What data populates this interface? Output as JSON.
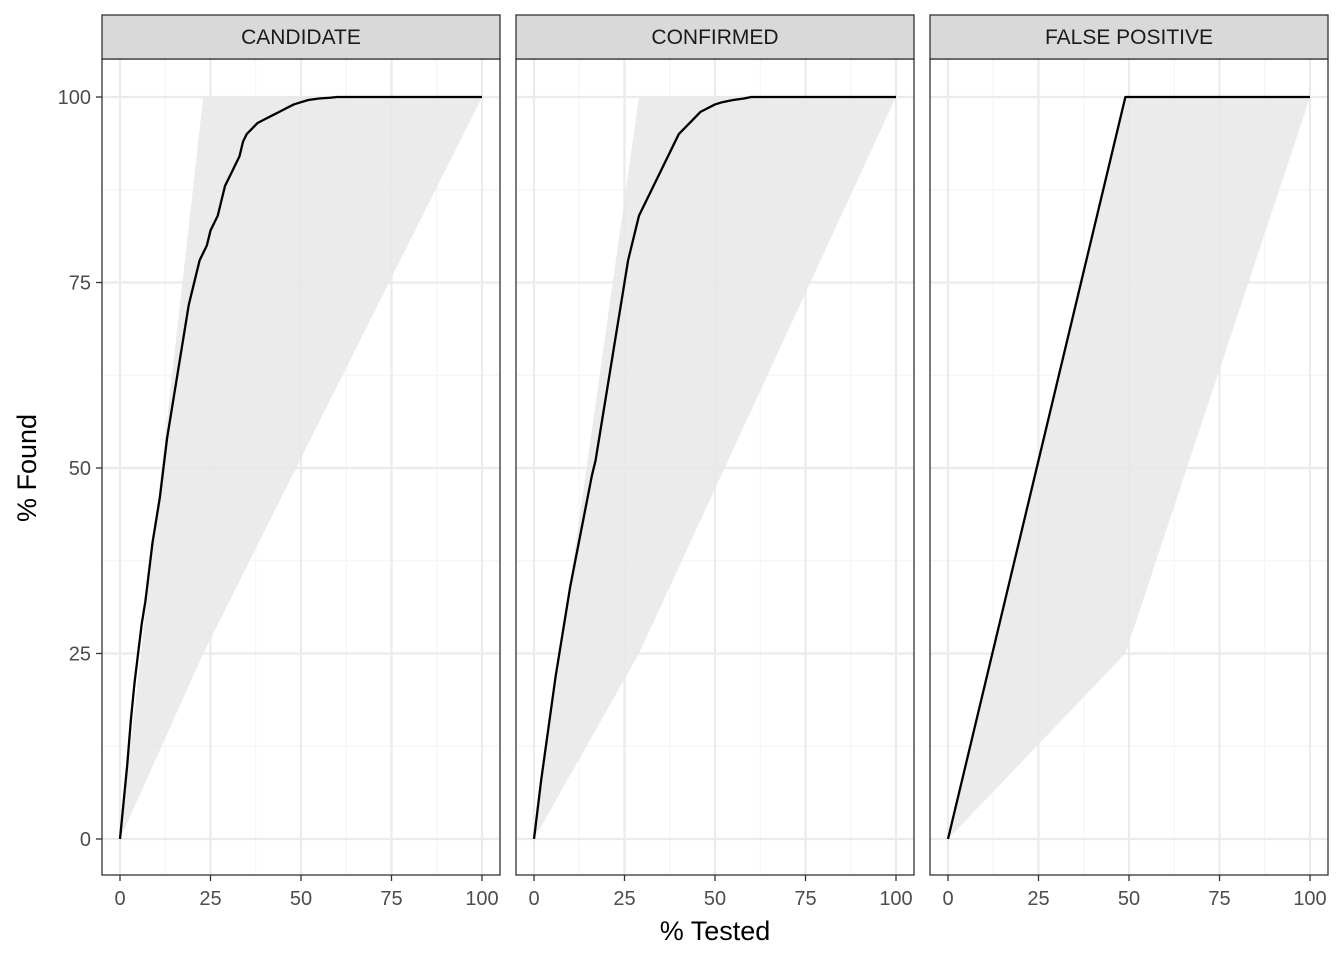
{
  "chart_data": {
    "type": "line",
    "xlabel": "% Tested",
    "ylabel": "% Found",
    "xlim": [
      0,
      100
    ],
    "ylim": [
      0,
      100
    ],
    "x_ticks": [
      "0",
      "25",
      "50",
      "75",
      "100"
    ],
    "y_ticks": [
      "0",
      "25",
      "50",
      "75",
      "100"
    ],
    "grid": true,
    "legend": "none",
    "colors": {
      "line": "#000000",
      "ribbon": "#e8e8e8",
      "grid_major": "#ebebeb",
      "grid_minor": "#f5f5f5",
      "strip_fill": "#d9d9d9",
      "border": "#333333"
    },
    "panels": [
      {
        "label": "CANDIDATE",
        "ribbon": {
          "x": [
            0,
            23,
            100
          ],
          "upper": [
            0,
            100,
            100
          ],
          "lower": [
            0,
            25,
            100
          ]
        },
        "x": [
          0,
          1,
          2,
          3,
          4,
          5,
          6,
          7,
          8,
          9,
          10,
          11,
          12,
          13,
          14,
          15,
          16,
          17,
          18,
          19,
          20,
          21,
          22,
          23,
          24,
          25,
          26,
          27,
          28,
          29,
          30,
          31,
          32,
          33,
          34,
          35,
          36,
          37,
          38,
          40,
          42,
          44,
          46,
          48,
          50,
          52,
          55,
          58,
          60,
          70,
          80,
          90,
          100
        ],
        "y": [
          0,
          5,
          10,
          16,
          21,
          25,
          29,
          32,
          36,
          40,
          43,
          46,
          50,
          54,
          57,
          60,
          63,
          66,
          69,
          72,
          74,
          76,
          78,
          79,
          80,
          82,
          83,
          84,
          86,
          88,
          89,
          90,
          91,
          92,
          94,
          95,
          95.5,
          96,
          96.5,
          97,
          97.5,
          98,
          98.5,
          99,
          99.3,
          99.6,
          99.8,
          99.9,
          100,
          100,
          100,
          100,
          100
        ]
      },
      {
        "label": "CONFIRMED",
        "ribbon": {
          "x": [
            0,
            29,
            100
          ],
          "upper": [
            0,
            100,
            100
          ],
          "lower": [
            0,
            25,
            100
          ]
        },
        "x": [
          0,
          2,
          4,
          6,
          8,
          10,
          12,
          14,
          16,
          17,
          18,
          19,
          20,
          21,
          22,
          23,
          24,
          25,
          26,
          27,
          28,
          29,
          30,
          31,
          32,
          33,
          34,
          35,
          36,
          37,
          38,
          39,
          40,
          42,
          44,
          46,
          48,
          50,
          52,
          55,
          58,
          60,
          70,
          80,
          85,
          90,
          100
        ],
        "y": [
          0,
          8,
          15,
          22,
          28,
          34,
          39,
          44,
          49,
          51,
          54,
          57,
          60,
          63,
          66,
          69,
          72,
          75,
          78,
          80,
          82,
          84,
          85,
          86,
          87,
          88,
          89,
          90,
          91,
          92,
          93,
          94,
          95,
          96,
          97,
          98,
          98.5,
          99,
          99.3,
          99.6,
          99.8,
          100,
          100,
          100,
          100,
          100,
          100
        ]
      },
      {
        "label": "FALSE POSITIVE",
        "ribbon": {
          "x": [
            0,
            49,
            100
          ],
          "upper": [
            0,
            100,
            100
          ],
          "lower": [
            0,
            25,
            100
          ]
        },
        "x": [
          0,
          49,
          100
        ],
        "y": [
          0,
          100,
          100
        ]
      }
    ]
  }
}
